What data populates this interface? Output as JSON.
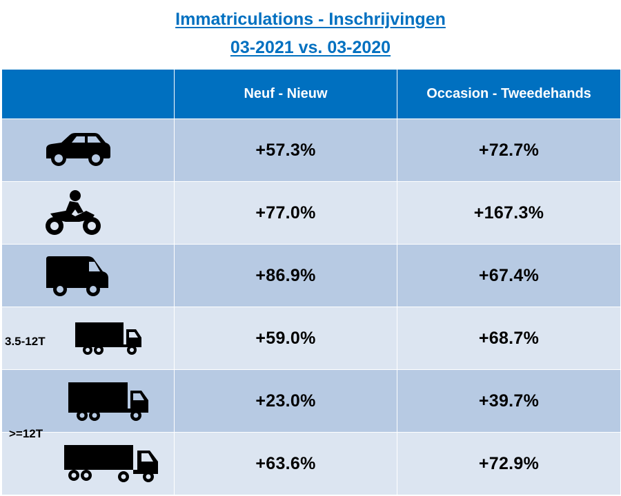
{
  "title": {
    "line1": "Immatriculations - Inschrijvingen",
    "line2": "03-2021 vs. 03-2020"
  },
  "header": {
    "col0": "",
    "col1": "Neuf - Nieuw",
    "col2": "Occasion - Tweedehands"
  },
  "rows": [
    {
      "icon": "car-icon",
      "label": "",
      "new": "+57.3%",
      "used": "+72.7%"
    },
    {
      "icon": "motorcycle-icon",
      "label": "",
      "new": "+77.0%",
      "used": "+167.3%"
    },
    {
      "icon": "van-icon",
      "label": "",
      "new": "+86.9%",
      "used": "+67.4%"
    },
    {
      "icon": "small-truck-icon",
      "label": "3.5-12T",
      "new": "+59.0%",
      "used": "+68.7%"
    },
    {
      "icon": "truck-icon",
      "label": "",
      "new": "+23.0%",
      "used": "+39.7%"
    },
    {
      "icon": "trailer-truck-icon",
      "label": "",
      "new": "+63.6%",
      "used": "+72.9%"
    }
  ],
  "heavy_label": ">=12T",
  "colors": {
    "header_blue": "#0070c0",
    "title_blue": "#0070c0",
    "row_dark": "#b7cae3",
    "row_light": "#dce5f1"
  }
}
